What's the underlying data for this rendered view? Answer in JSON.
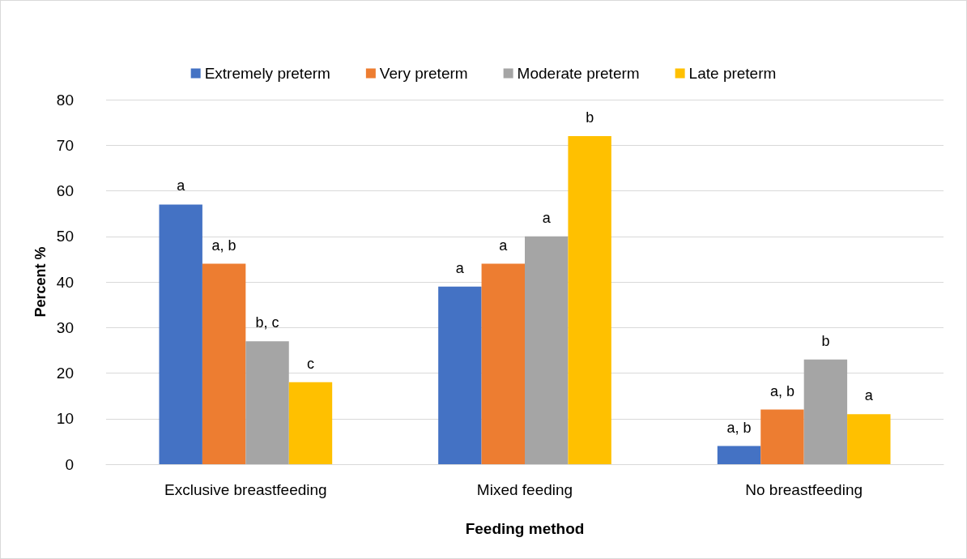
{
  "chart_data": {
    "type": "bar",
    "xlabel": "Feeding method",
    "ylabel": "Percent %",
    "categories": [
      "Exclusive breastfeeding",
      "Mixed feeding",
      "No breastfeeding"
    ],
    "series": [
      {
        "name": "Extremely preterm",
        "color": "#4472c4",
        "values": [
          57,
          39,
          4
        ],
        "value_labels": [
          "a",
          "a",
          "a, b"
        ]
      },
      {
        "name": "Very preterm",
        "color": "#ed7d31",
        "values": [
          44,
          44,
          12
        ],
        "value_labels": [
          "a, b",
          "a",
          "a, b"
        ]
      },
      {
        "name": "Moderate preterm",
        "color": "#a5a5a5",
        "values": [
          27,
          50,
          23
        ],
        "value_labels": [
          "b, c",
          "a",
          "b"
        ]
      },
      {
        "name": "Late preterm",
        "color": "#ffc000",
        "values": [
          18,
          72,
          11
        ],
        "value_labels": [
          "c",
          "b",
          "a"
        ]
      }
    ],
    "ylim": [
      0,
      80
    ],
    "yticks": [
      0,
      10,
      20,
      30,
      40,
      50,
      60,
      70,
      80
    ],
    "grid": "y",
    "legend": "top"
  }
}
